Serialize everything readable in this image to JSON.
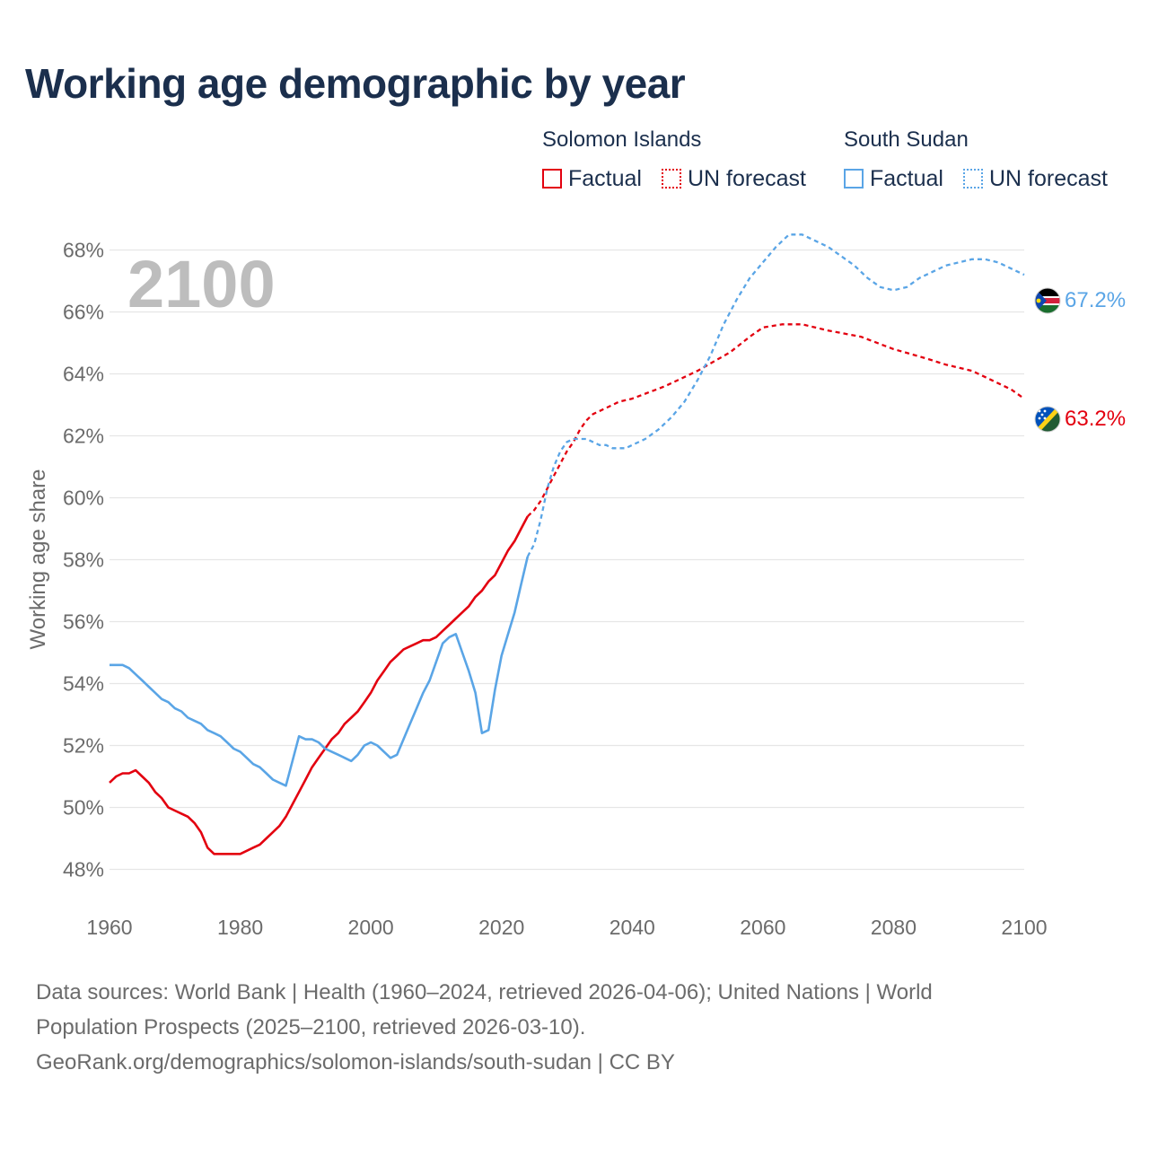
{
  "title": "Working age demographic by year",
  "legend": {
    "solomon": {
      "country": "Solomon Islands",
      "factual": "Factual",
      "forecast": "UN forecast",
      "color": "#e3000f"
    },
    "sudan": {
      "country": "South Sudan",
      "factual": "Factual",
      "forecast": "UN forecast",
      "color": "#5aa5e6"
    }
  },
  "footer": {
    "line1": "Data sources: World Bank | Health (1960–2024, retrieved 2026-04-06); United Nations | World",
    "line2": "Population Prospects (2025–2100, retrieved 2026-03-10).",
    "line3": "GeoRank.org/demographics/solomon-islands/south-sudan | CC BY"
  },
  "chart_data": {
    "type": "line",
    "title": "Working age demographic by year",
    "year_label": "2100",
    "xlabel": "",
    "ylabel": "Working age share",
    "xlim": [
      1960,
      2100
    ],
    "ylim": [
      47,
      69
    ],
    "x_ticks": [
      1960,
      1980,
      2000,
      2020,
      2040,
      2060,
      2080,
      2100
    ],
    "y_ticks": [
      48,
      50,
      52,
      54,
      56,
      58,
      60,
      62,
      64,
      66,
      68
    ],
    "y_tick_labels": [
      "48%",
      "50%",
      "52%",
      "54%",
      "56%",
      "58%",
      "60%",
      "62%",
      "64%",
      "66%",
      "68%"
    ],
    "grid": true,
    "series": [
      {
        "name": "Solomon Islands",
        "color": "#e3000f",
        "end_label": "63.2%",
        "factual": [
          [
            1960,
            50.8
          ],
          [
            1961,
            51.0
          ],
          [
            1962,
            51.1
          ],
          [
            1963,
            51.1
          ],
          [
            1964,
            51.2
          ],
          [
            1965,
            51.0
          ],
          [
            1966,
            50.8
          ],
          [
            1967,
            50.5
          ],
          [
            1968,
            50.3
          ],
          [
            1969,
            50.0
          ],
          [
            1970,
            49.9
          ],
          [
            1971,
            49.8
          ],
          [
            1972,
            49.7
          ],
          [
            1973,
            49.5
          ],
          [
            1974,
            49.2
          ],
          [
            1975,
            48.7
          ],
          [
            1976,
            48.5
          ],
          [
            1977,
            48.5
          ],
          [
            1978,
            48.5
          ],
          [
            1979,
            48.5
          ],
          [
            1980,
            48.5
          ],
          [
            1981,
            48.6
          ],
          [
            1982,
            48.7
          ],
          [
            1983,
            48.8
          ],
          [
            1984,
            49.0
          ],
          [
            1985,
            49.2
          ],
          [
            1986,
            49.4
          ],
          [
            1987,
            49.7
          ],
          [
            1988,
            50.1
          ],
          [
            1989,
            50.5
          ],
          [
            1990,
            50.9
          ],
          [
            1991,
            51.3
          ],
          [
            1992,
            51.6
          ],
          [
            1993,
            51.9
          ],
          [
            1994,
            52.2
          ],
          [
            1995,
            52.4
          ],
          [
            1996,
            52.7
          ],
          [
            1997,
            52.9
          ],
          [
            1998,
            53.1
          ],
          [
            1999,
            53.4
          ],
          [
            2000,
            53.7
          ],
          [
            2001,
            54.1
          ],
          [
            2002,
            54.4
          ],
          [
            2003,
            54.7
          ],
          [
            2004,
            54.9
          ],
          [
            2005,
            55.1
          ],
          [
            2006,
            55.2
          ],
          [
            2007,
            55.3
          ],
          [
            2008,
            55.4
          ],
          [
            2009,
            55.4
          ],
          [
            2010,
            55.5
          ],
          [
            2011,
            55.7
          ],
          [
            2012,
            55.9
          ],
          [
            2013,
            56.1
          ],
          [
            2014,
            56.3
          ],
          [
            2015,
            56.5
          ],
          [
            2016,
            56.8
          ],
          [
            2017,
            57.0
          ],
          [
            2018,
            57.3
          ],
          [
            2019,
            57.5
          ],
          [
            2020,
            57.9
          ],
          [
            2021,
            58.3
          ],
          [
            2022,
            58.6
          ],
          [
            2023,
            59.0
          ],
          [
            2024,
            59.4
          ]
        ],
        "forecast": [
          [
            2024,
            59.4
          ],
          [
            2025,
            59.6
          ],
          [
            2026,
            59.9
          ],
          [
            2027,
            60.3
          ],
          [
            2028,
            60.7
          ],
          [
            2029,
            61.1
          ],
          [
            2030,
            61.5
          ],
          [
            2031,
            61.8
          ],
          [
            2032,
            62.2
          ],
          [
            2033,
            62.5
          ],
          [
            2034,
            62.7
          ],
          [
            2035,
            62.8
          ],
          [
            2036,
            62.9
          ],
          [
            2037,
            63.0
          ],
          [
            2038,
            63.1
          ],
          [
            2040,
            63.2
          ],
          [
            2045,
            63.6
          ],
          [
            2050,
            64.1
          ],
          [
            2055,
            64.7
          ],
          [
            2058,
            65.2
          ],
          [
            2060,
            65.5
          ],
          [
            2063,
            65.6
          ],
          [
            2066,
            65.6
          ],
          [
            2070,
            65.4
          ],
          [
            2075,
            65.2
          ],
          [
            2080,
            64.8
          ],
          [
            2085,
            64.5
          ],
          [
            2088,
            64.3
          ],
          [
            2092,
            64.1
          ],
          [
            2095,
            63.8
          ],
          [
            2098,
            63.5
          ],
          [
            2100,
            63.2
          ]
        ]
      },
      {
        "name": "South Sudan",
        "color": "#5aa5e6",
        "end_label": "67.2%",
        "factual": [
          [
            1960,
            54.6
          ],
          [
            1961,
            54.6
          ],
          [
            1962,
            54.6
          ],
          [
            1963,
            54.5
          ],
          [
            1964,
            54.3
          ],
          [
            1965,
            54.1
          ],
          [
            1966,
            53.9
          ],
          [
            1967,
            53.7
          ],
          [
            1968,
            53.5
          ],
          [
            1969,
            53.4
          ],
          [
            1970,
            53.2
          ],
          [
            1971,
            53.1
          ],
          [
            1972,
            52.9
          ],
          [
            1973,
            52.8
          ],
          [
            1974,
            52.7
          ],
          [
            1975,
            52.5
          ],
          [
            1976,
            52.4
          ],
          [
            1977,
            52.3
          ],
          [
            1978,
            52.1
          ],
          [
            1979,
            51.9
          ],
          [
            1980,
            51.8
          ],
          [
            1981,
            51.6
          ],
          [
            1982,
            51.4
          ],
          [
            1983,
            51.3
          ],
          [
            1984,
            51.1
          ],
          [
            1985,
            50.9
          ],
          [
            1986,
            50.8
          ],
          [
            1987,
            50.7
          ],
          [
            1988,
            51.5
          ],
          [
            1989,
            52.3
          ],
          [
            1990,
            52.2
          ],
          [
            1991,
            52.2
          ],
          [
            1992,
            52.1
          ],
          [
            1993,
            51.9
          ],
          [
            1994,
            51.8
          ],
          [
            1995,
            51.7
          ],
          [
            1996,
            51.6
          ],
          [
            1997,
            51.5
          ],
          [
            1998,
            51.7
          ],
          [
            1999,
            52.0
          ],
          [
            2000,
            52.1
          ],
          [
            2001,
            52.0
          ],
          [
            2002,
            51.8
          ],
          [
            2003,
            51.6
          ],
          [
            2004,
            51.7
          ],
          [
            2005,
            52.2
          ],
          [
            2006,
            52.7
          ],
          [
            2007,
            53.2
          ],
          [
            2008,
            53.7
          ],
          [
            2009,
            54.1
          ],
          [
            2010,
            54.7
          ],
          [
            2011,
            55.3
          ],
          [
            2012,
            55.5
          ],
          [
            2013,
            55.6
          ],
          [
            2014,
            55.0
          ],
          [
            2015,
            54.4
          ],
          [
            2016,
            53.7
          ],
          [
            2017,
            52.4
          ],
          [
            2018,
            52.5
          ],
          [
            2019,
            53.8
          ],
          [
            2020,
            54.9
          ],
          [
            2021,
            55.6
          ],
          [
            2022,
            56.3
          ],
          [
            2023,
            57.2
          ],
          [
            2024,
            58.1
          ]
        ],
        "forecast": [
          [
            2024,
            58.1
          ],
          [
            2025,
            58.5
          ],
          [
            2026,
            59.3
          ],
          [
            2027,
            60.3
          ],
          [
            2028,
            61.0
          ],
          [
            2029,
            61.5
          ],
          [
            2030,
            61.8
          ],
          [
            2031,
            61.9
          ],
          [
            2032,
            61.9
          ],
          [
            2033,
            61.9
          ],
          [
            2034,
            61.8
          ],
          [
            2035,
            61.7
          ],
          [
            2036,
            61.7
          ],
          [
            2037,
            61.6
          ],
          [
            2038,
            61.6
          ],
          [
            2039,
            61.6
          ],
          [
            2040,
            61.7
          ],
          [
            2042,
            61.9
          ],
          [
            2044,
            62.2
          ],
          [
            2046,
            62.6
          ],
          [
            2048,
            63.1
          ],
          [
            2050,
            63.8
          ],
          [
            2052,
            64.6
          ],
          [
            2054,
            65.6
          ],
          [
            2056,
            66.4
          ],
          [
            2058,
            67.1
          ],
          [
            2060,
            67.6
          ],
          [
            2062,
            68.1
          ],
          [
            2064,
            68.5
          ],
          [
            2066,
            68.5
          ],
          [
            2068,
            68.3
          ],
          [
            2070,
            68.1
          ],
          [
            2072,
            67.8
          ],
          [
            2074,
            67.5
          ],
          [
            2076,
            67.1
          ],
          [
            2078,
            66.8
          ],
          [
            2080,
            66.7
          ],
          [
            2082,
            66.8
          ],
          [
            2084,
            67.1
          ],
          [
            2086,
            67.3
          ],
          [
            2088,
            67.5
          ],
          [
            2090,
            67.6
          ],
          [
            2092,
            67.7
          ],
          [
            2094,
            67.7
          ],
          [
            2096,
            67.6
          ],
          [
            2098,
            67.4
          ],
          [
            2100,
            67.2
          ]
        ]
      }
    ]
  }
}
